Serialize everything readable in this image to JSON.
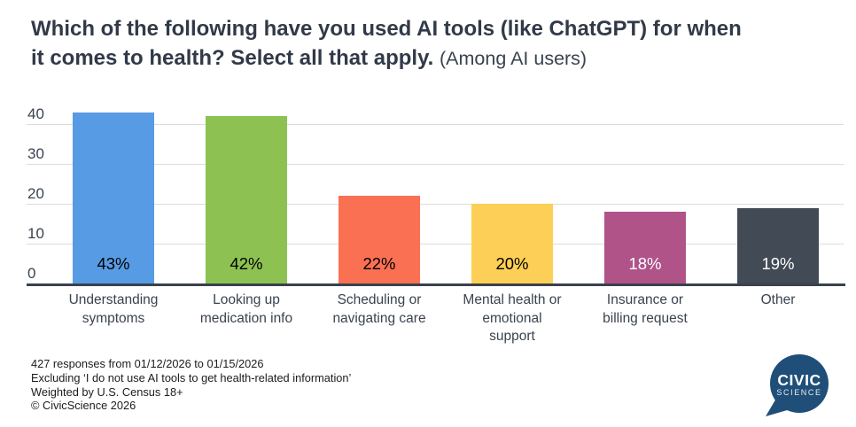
{
  "title": {
    "line1": "Which of the following have you used AI tools (like ChatGPT) for when",
    "line2": "it comes to health? Select all that apply.",
    "suffix": "(Among AI users)"
  },
  "chart_data": {
    "type": "bar",
    "title": "Which of the following have you used AI tools (like ChatGPT) for when it comes to health? Select all that apply.",
    "subtitle": "(Among AI users)",
    "categories": [
      "Understanding symptoms",
      "Looking up medication info",
      "Scheduling or navigating care",
      "Mental health or emotional support",
      "Insurance or billing request",
      "Other"
    ],
    "category_lines": [
      [
        "Understanding",
        "symptoms"
      ],
      [
        "Looking up",
        "medication info"
      ],
      [
        "Scheduling or",
        "navigating care"
      ],
      [
        "Mental health or",
        "emotional",
        "support"
      ],
      [
        "Insurance or",
        "billing request"
      ],
      [
        "Other"
      ]
    ],
    "values": [
      43,
      42,
      22,
      20,
      18,
      19
    ],
    "value_labels": [
      "43%",
      "42%",
      "22%",
      "20%",
      "18%",
      "19%"
    ],
    "bar_colors": [
      "#579BE4",
      "#8DC252",
      "#FA7053",
      "#FECF56",
      "#AF5389",
      "#424A55"
    ],
    "value_label_colors": [
      "#000000",
      "#000000",
      "#000000",
      "#000000",
      "#FFFFFF",
      "#FFFFFF"
    ],
    "yticks": [
      0,
      10,
      20,
      30,
      40
    ],
    "ylim": [
      0,
      44
    ],
    "grid": true,
    "legend": false,
    "xlabel": "",
    "ylabel": ""
  },
  "footer": {
    "lines": [
      "427 responses from 01/12/2026 to 01/15/2026",
      "Excluding ‘I do not use AI tools to get health-related information’",
      "Weighted by U.S. Census 18+",
      "© CivicScience 2026"
    ]
  },
  "logo": {
    "line1": "CIVIC",
    "line2": "SCIENCE",
    "bubble_color": "#1F4E78"
  },
  "colors": {
    "axis": "#3A414D",
    "gridline": "#DCDCDC",
    "title": "#323A48",
    "tick_text": "#3A4350"
  }
}
